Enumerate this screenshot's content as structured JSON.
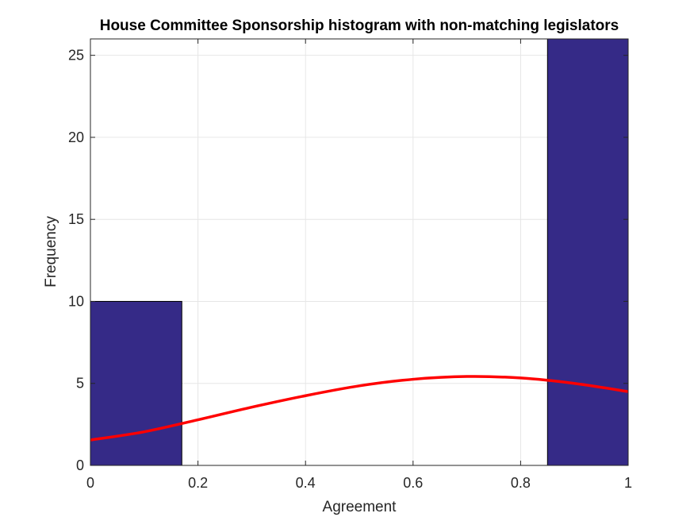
{
  "chart_data": {
    "type": "bar",
    "title": "House Committee Sponsorship histogram with non-matching legislators",
    "xlabel": "Agreement",
    "ylabel": "Frequency",
    "xlim": [
      0,
      1
    ],
    "ylim": [
      0,
      26
    ],
    "xticks": [
      "0",
      "0.2",
      "0.4",
      "0.6",
      "0.8",
      "1"
    ],
    "yticks": [
      "0",
      "5",
      "10",
      "15",
      "20",
      "25"
    ],
    "grid": true,
    "bins": [
      {
        "x0": 0,
        "x1": 0.17,
        "count": 10
      },
      {
        "x0": 0.85,
        "x1": 1.0,
        "count": 26
      }
    ],
    "fit_curve": {
      "x": [
        0,
        0.1,
        0.2,
        0.3,
        0.4,
        0.5,
        0.6,
        0.7,
        0.8,
        0.9,
        1.0
      ],
      "y": [
        1.55,
        2.05,
        2.78,
        3.55,
        4.25,
        4.85,
        5.25,
        5.42,
        5.33,
        5.0,
        4.5
      ]
    },
    "colors": {
      "bar": "#352a87",
      "curve": "#ff0000",
      "grid": "#e6e6e6",
      "axis": "#262626"
    }
  }
}
